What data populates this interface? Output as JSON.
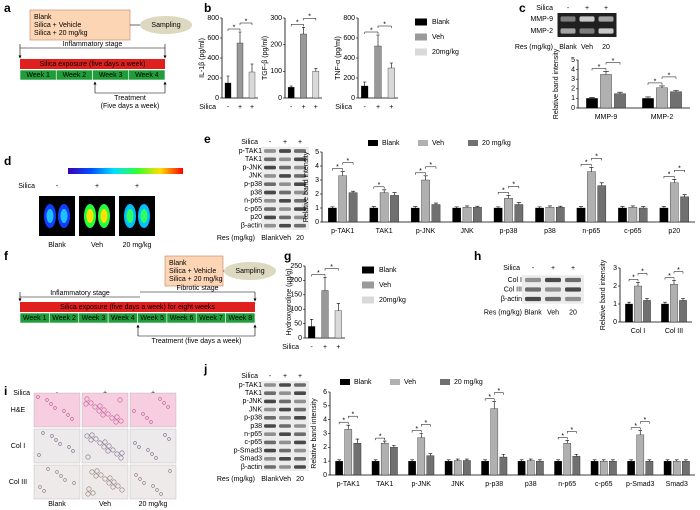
{
  "panel_labels": [
    "a",
    "b",
    "c",
    "d",
    "e",
    "f",
    "g",
    "h",
    "i",
    "j"
  ],
  "timeline_a": {
    "groups": [
      "Blank",
      "Silica + Vehicle",
      "Silica + 20 mg/kg"
    ],
    "sampling": "Sampling",
    "stages": [
      "Inflammatory stage"
    ],
    "exposure": "Silica exposure (five days a week)",
    "weeks": [
      "Week 1",
      "Week 2",
      "Week 3",
      "Week 4"
    ],
    "treatment": [
      "Treatment",
      "(Five days a week)"
    ]
  },
  "timeline_f": {
    "groups": [
      "Blank",
      "Silica + Vehicle",
      "Silica + 20 mg/kg"
    ],
    "sampling": "Sampling",
    "stages": [
      "Inflammatory stage",
      "Fibrotic stage"
    ],
    "exposure": "Silica exposure (five days a week) for eight weeks",
    "weeks": [
      "Week 1",
      "Week 2",
      "Week 3",
      "Week 4",
      "Week 5",
      "Week 6",
      "Week 7",
      "Week 8"
    ],
    "treatment": [
      "Treatment (five days a week)"
    ]
  },
  "blot_c": {
    "header_label": "Silica",
    "header": [
      "-",
      "+",
      "+"
    ],
    "rows": [
      "MMP-9",
      "MMP-2"
    ],
    "footer_label": "Res (mg/kg)",
    "footer": [
      "Blank",
      "Veh",
      "20"
    ]
  },
  "imaging_d": {
    "header_label": "Silica",
    "header": [
      "-",
      "+",
      "+"
    ],
    "groups": [
      "Blank",
      "Veh",
      "20 mg/kg"
    ]
  },
  "blot_e": {
    "header_label": "Silica",
    "header": [
      "-",
      "+",
      "+"
    ],
    "rows": [
      "p-TAK1",
      "TAK1",
      "p-JNK",
      "JNK",
      "p-p38",
      "p38",
      "n-p65",
      "c-p65",
      "p20",
      "β-actin"
    ],
    "footer_label": "Res (mg/kg)",
    "footer": [
      "Blank",
      "Veh",
      "20"
    ]
  },
  "blot_h": {
    "header_label": "Silica",
    "header": [
      "-",
      "+",
      "+"
    ],
    "rows": [
      "Col I",
      "Col III",
      "β-actin"
    ],
    "footer_label": "Res (mg/kg)",
    "footer": [
      "Blank",
      "Veh",
      "20"
    ]
  },
  "histology_i": {
    "header_label": "Silica",
    "header": [
      "-",
      "+",
      "+"
    ],
    "rows": [
      "H&E",
      "Col I",
      "Col III"
    ],
    "groups": [
      "Blank",
      "Veh",
      "20 mg/kg"
    ]
  },
  "blot_j": {
    "header_label": "Silica",
    "header": [
      "-",
      "+",
      "+"
    ],
    "rows": [
      "p-TAK1",
      "TAK1",
      "p-JNK",
      "JNK",
      "p-p38",
      "p38",
      "n-p65",
      "c-p65",
      "p-Smad3",
      "Smad3",
      "β-actin"
    ],
    "footer_label": "Res (mg/kg)",
    "footer": [
      "Blank",
      "Veh",
      "20"
    ]
  },
  "chart_data": [
    {
      "type": "bar",
      "ylabel": "IL-1β (pg/ml)",
      "x_row_label": "Silica",
      "categories": [
        "-",
        "+",
        "+"
      ],
      "values": [
        150,
        550,
        260
      ],
      "errors": [
        70,
        110,
        80
      ],
      "colors": [
        "#000000",
        "#999999",
        "#d9d9d9"
      ],
      "ylim": [
        0,
        800
      ],
      "yticks": [
        0,
        200,
        400,
        600,
        800
      ],
      "significance": {
        "label": "*",
        "pairs": [
          [
            0,
            1
          ],
          [
            1,
            2
          ]
        ]
      }
    },
    {
      "type": "bar",
      "ylabel": "TGF-β (pg/ml)",
      "categories": [
        "-",
        "+",
        "+"
      ],
      "values": [
        40,
        240,
        100
      ],
      "errors": [
        5,
        25,
        10
      ],
      "colors": [
        "#000000",
        "#999999",
        "#d9d9d9"
      ],
      "ylim": [
        0,
        300
      ],
      "yticks": [
        0,
        100,
        200,
        300
      ],
      "significance": {
        "label": "*",
        "pairs": [
          [
            0,
            1
          ],
          [
            1,
            2
          ]
        ]
      }
    },
    {
      "type": "bar",
      "ylabel": "TNF-α (pg/ml)",
      "x_row_label": "Silica",
      "categories": [
        "-",
        "+",
        "+"
      ],
      "values": [
        120,
        520,
        300
      ],
      "errors": [
        40,
        110,
        50
      ],
      "colors": [
        "#000000",
        "#999999",
        "#d9d9d9"
      ],
      "ylim": [
        0,
        800
      ],
      "yticks": [
        0,
        200,
        400,
        600,
        800
      ],
      "significance": {
        "label": "*",
        "pairs": [
          [
            0,
            1
          ],
          [
            1,
            2
          ]
        ]
      },
      "legend": [
        {
          "name": "Blank",
          "color": "#000000"
        },
        {
          "name": "Veh",
          "color": "#999999"
        },
        {
          "name": "20mg/kg",
          "color": "#d9d9d9"
        }
      ]
    },
    {
      "type": "grouped_bar",
      "ylabel": "Relative band intensity",
      "categories": [
        "MMP-9",
        "MMP-2"
      ],
      "series": [
        {
          "color": "#000000",
          "values": [
            1,
            1
          ],
          "errors": [
            0.1,
            0.15
          ]
        },
        {
          "color": "#b0b0b0",
          "values": [
            3.5,
            2.1
          ],
          "errors": [
            0.3,
            0.2
          ]
        },
        {
          "color": "#707070",
          "values": [
            1.5,
            1.7
          ],
          "errors": [
            0.15,
            0.15
          ]
        }
      ],
      "ylim": [
        0,
        5
      ],
      "yticks": [
        0,
        1,
        2,
        3,
        4,
        5
      ],
      "significance": {
        "label": "*",
        "pairs": [
          [
            0,
            0,
            1
          ],
          [
            0,
            1,
            2
          ],
          [
            1,
            0,
            1
          ],
          [
            1,
            1,
            2
          ]
        ]
      }
    },
    {
      "type": "grouped_bar",
      "ylabel": "Relative band intensity",
      "categories": [
        "p-TAK1",
        "TAK1",
        "p-JNK",
        "JNK",
        "p-p38",
        "p38",
        "n-p65",
        "c-p65",
        "p20"
      ],
      "series": [
        {
          "name": "Blank",
          "color": "#000000",
          "values": [
            1,
            1,
            1,
            1,
            1,
            1,
            1,
            1,
            1
          ],
          "errors": [
            0.08,
            0.1,
            0.1,
            0.08,
            0.08,
            0.08,
            0.1,
            0.1,
            0.1
          ]
        },
        {
          "name": "Veh",
          "color": "#b0b0b0",
          "values": [
            3.3,
            2.1,
            3.0,
            1.05,
            1.7,
            1.05,
            3.6,
            1.05,
            2.8
          ],
          "errors": [
            0.3,
            0.2,
            0.3,
            0.1,
            0.2,
            0.1,
            0.3,
            0.1,
            0.25
          ]
        },
        {
          "name": "20 mg/kg",
          "color": "#707070",
          "values": [
            2.1,
            1.9,
            1.25,
            1.05,
            1.25,
            1.05,
            2.6,
            1.0,
            1.8
          ],
          "errors": [
            0.1,
            0.2,
            0.1,
            0.08,
            0.15,
            0.08,
            0.2,
            0.1,
            0.15
          ]
        }
      ],
      "ylim": [
        0,
        5
      ],
      "yticks": [
        0,
        1,
        2,
        3,
        4,
        5
      ],
      "significance": {
        "label": "*",
        "pairs": [
          [
            0,
            0,
            1
          ],
          [
            0,
            1,
            2
          ],
          [
            1,
            0,
            1
          ],
          [
            2,
            0,
            1
          ],
          [
            2,
            1,
            2
          ],
          [
            4,
            0,
            1
          ],
          [
            4,
            1,
            2
          ],
          [
            6,
            0,
            1
          ],
          [
            6,
            1,
            2
          ],
          [
            8,
            0,
            1
          ],
          [
            8,
            1,
            2
          ]
        ]
      }
    },
    {
      "type": "bar",
      "ylabel": "Hydroxyproline (μg/g)",
      "x_row_label": "Silica",
      "categories": [
        "-",
        "+",
        "+"
      ],
      "values": [
        40,
        165,
        95
      ],
      "errors": [
        25,
        45,
        25
      ],
      "colors": [
        "#000000",
        "#999999",
        "#d9d9d9"
      ],
      "ylim": [
        0,
        250
      ],
      "yticks": [
        0,
        50,
        100,
        150,
        200,
        250
      ],
      "significance": {
        "label": "*",
        "pairs": [
          [
            0,
            1
          ],
          [
            1,
            2
          ]
        ]
      },
      "legend": [
        {
          "name": "Blank",
          "color": "#000000"
        },
        {
          "name": "Veh",
          "color": "#999999"
        },
        {
          "name": "20mg/kg",
          "color": "#d9d9d9"
        }
      ]
    },
    {
      "type": "grouped_bar",
      "ylabel": "Relative band intensity",
      "categories": [
        "Col I",
        "Col III"
      ],
      "series": [
        {
          "color": "#000000",
          "values": [
            1,
            1
          ],
          "errors": [
            0.1,
            0.1
          ]
        },
        {
          "color": "#b0b0b0",
          "values": [
            2.0,
            2.1
          ],
          "errors": [
            0.2,
            0.2
          ]
        },
        {
          "color": "#707070",
          "values": [
            1.2,
            1.2
          ],
          "errors": [
            0.1,
            0.1
          ]
        }
      ],
      "ylim": [
        0,
        3
      ],
      "yticks": [
        0,
        1,
        2,
        3
      ],
      "significance": {
        "label": "*",
        "pairs": [
          [
            0,
            0,
            1
          ],
          [
            0,
            1,
            2
          ],
          [
            1,
            0,
            1
          ],
          [
            1,
            1,
            2
          ]
        ]
      }
    },
    {
      "type": "grouped_bar",
      "ylabel": "Relative band intensity",
      "categories": [
        "p-TAK1",
        "TAK1",
        "p-JNK",
        "JNK",
        "p-p38",
        "p38",
        "n-p65",
        "c-p65",
        "p-Smad3",
        "Smad3"
      ],
      "series": [
        {
          "name": "Blank",
          "color": "#000000",
          "values": [
            1,
            1,
            1,
            1,
            1,
            1,
            1,
            1,
            1,
            1
          ],
          "errors": [
            0.1,
            0.1,
            0.1,
            0.1,
            0.1,
            0.1,
            0.1,
            0.1,
            0.1,
            0.1
          ]
        },
        {
          "name": "Veh",
          "color": "#b0b0b0",
          "values": [
            3.3,
            2.3,
            2.7,
            1.05,
            4.8,
            1.05,
            2.3,
            1.0,
            2.9,
            1.0
          ],
          "errors": [
            0.3,
            0.15,
            0.3,
            0.1,
            0.5,
            0.1,
            0.2,
            0.1,
            0.3,
            0.1
          ]
        },
        {
          "name": "20 mg/kg",
          "color": "#707070",
          "values": [
            2.3,
            2.0,
            1.4,
            1.05,
            1.3,
            1.0,
            1.35,
            1.0,
            1.0,
            1.0
          ],
          "errors": [
            0.3,
            0.15,
            0.15,
            0.1,
            0.2,
            0.1,
            0.15,
            0.1,
            0.1,
            0.1
          ]
        }
      ],
      "ylim": [
        0,
        6
      ],
      "yticks": [
        0,
        1,
        2,
        3,
        4,
        5,
        6
      ],
      "significance": {
        "label": "*",
        "pairs": [
          [
            0,
            0,
            1
          ],
          [
            0,
            1,
            2
          ],
          [
            1,
            0,
            1
          ],
          [
            2,
            0,
            1
          ],
          [
            2,
            1,
            2
          ],
          [
            4,
            0,
            1
          ],
          [
            4,
            1,
            2
          ],
          [
            6,
            0,
            1
          ],
          [
            6,
            1,
            2
          ],
          [
            8,
            0,
            1
          ],
          [
            8,
            1,
            2
          ]
        ]
      }
    }
  ]
}
